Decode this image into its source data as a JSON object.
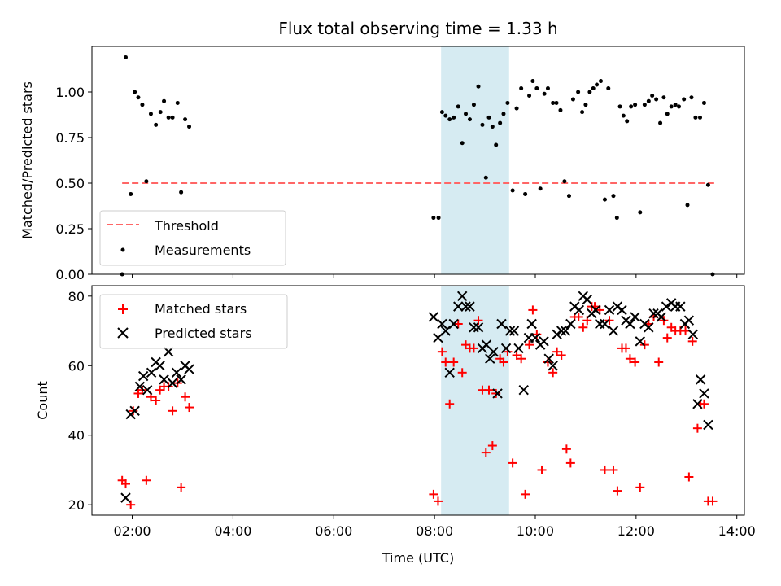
{
  "chart_data": [
    {
      "type": "scatter",
      "title": "Flux total observing time = 1.33 h",
      "ylabel": "Matched/Predicted stars",
      "ylim": [
        0,
        1.25
      ],
      "yticks": [
        0.0,
        0.25,
        0.5,
        0.75,
        1.0
      ],
      "ytick_labels": [
        "0.00",
        "0.25",
        "0.50",
        "0.75",
        "1.00"
      ],
      "xlim_hours": [
        1.2,
        14.15
      ],
      "xticks": [
        2,
        4,
        6,
        8,
        10,
        12,
        14
      ],
      "grid": false,
      "legend_position": "lower-left",
      "shaded_interval": [
        8.13,
        9.48
      ],
      "shade_color": "#add8e6",
      "threshold": {
        "name": "Threshold",
        "y": 0.5,
        "x_range": [
          1.8,
          13.55
        ],
        "color": "#ff6666"
      },
      "series": [
        {
          "name": "Measurements",
          "color": "#000000",
          "points": [
            [
              1.8,
              0.0
            ],
            [
              1.87,
              1.19
            ],
            [
              1.97,
              0.44
            ],
            [
              2.05,
              1.0
            ],
            [
              2.12,
              0.97
            ],
            [
              2.2,
              0.93
            ],
            [
              2.28,
              0.51
            ],
            [
              2.37,
              0.88
            ],
            [
              2.47,
              0.82
            ],
            [
              2.56,
              0.89
            ],
            [
              2.63,
              0.95
            ],
            [
              2.72,
              0.86
            ],
            [
              2.8,
              0.86
            ],
            [
              2.9,
              0.94
            ],
            [
              2.97,
              0.45
            ],
            [
              3.05,
              0.85
            ],
            [
              3.13,
              0.81
            ],
            [
              7.98,
              0.31
            ],
            [
              8.08,
              0.31
            ],
            [
              8.15,
              0.89
            ],
            [
              8.22,
              0.87
            ],
            [
              8.3,
              0.85
            ],
            [
              8.38,
              0.86
            ],
            [
              8.47,
              0.92
            ],
            [
              8.55,
              0.72
            ],
            [
              8.62,
              0.88
            ],
            [
              8.7,
              0.85
            ],
            [
              8.78,
              0.93
            ],
            [
              8.87,
              1.03
            ],
            [
              8.95,
              0.82
            ],
            [
              9.02,
              0.53
            ],
            [
              9.08,
              0.86
            ],
            [
              9.15,
              0.81
            ],
            [
              9.22,
              0.71
            ],
            [
              9.3,
              0.83
            ],
            [
              9.37,
              0.88
            ],
            [
              9.45,
              0.94
            ],
            [
              9.55,
              0.46
            ],
            [
              9.63,
              0.91
            ],
            [
              9.72,
              1.02
            ],
            [
              9.8,
              0.44
            ],
            [
              9.88,
              0.98
            ],
            [
              9.95,
              1.06
            ],
            [
              10.03,
              1.02
            ],
            [
              10.1,
              0.47
            ],
            [
              10.18,
              0.99
            ],
            [
              10.25,
              1.02
            ],
            [
              10.35,
              0.94
            ],
            [
              10.42,
              0.94
            ],
            [
              10.5,
              0.9
            ],
            [
              10.58,
              0.51
            ],
            [
              10.67,
              0.43
            ],
            [
              10.75,
              0.96
            ],
            [
              10.85,
              1.0
            ],
            [
              10.93,
              0.89
            ],
            [
              11.0,
              0.93
            ],
            [
              11.08,
              1.0
            ],
            [
              11.15,
              1.02
            ],
            [
              11.22,
              1.04
            ],
            [
              11.3,
              1.06
            ],
            [
              11.38,
              0.41
            ],
            [
              11.45,
              1.02
            ],
            [
              11.55,
              0.43
            ],
            [
              11.62,
              0.31
            ],
            [
              11.68,
              0.92
            ],
            [
              11.75,
              0.87
            ],
            [
              11.82,
              0.84
            ],
            [
              11.9,
              0.92
            ],
            [
              11.98,
              0.93
            ],
            [
              12.08,
              0.34
            ],
            [
              12.17,
              0.93
            ],
            [
              12.25,
              0.95
            ],
            [
              12.32,
              0.98
            ],
            [
              12.4,
              0.96
            ],
            [
              12.48,
              0.83
            ],
            [
              12.55,
              0.97
            ],
            [
              12.62,
              0.88
            ],
            [
              12.7,
              0.92
            ],
            [
              12.78,
              0.93
            ],
            [
              12.85,
              0.92
            ],
            [
              12.95,
              0.96
            ],
            [
              13.02,
              0.38
            ],
            [
              13.1,
              0.97
            ],
            [
              13.18,
              0.86
            ],
            [
              13.27,
              0.86
            ],
            [
              13.35,
              0.94
            ],
            [
              13.43,
              0.49
            ],
            [
              13.52,
              0.0
            ]
          ]
        }
      ]
    },
    {
      "type": "scatter",
      "xlabel": "Time (UTC)",
      "ylabel": "Count",
      "ylim": [
        17,
        83
      ],
      "yticks": [
        20,
        40,
        60,
        80
      ],
      "ytick_labels": [
        "20",
        "40",
        "60",
        "80"
      ],
      "xlim_hours": [
        1.2,
        14.15
      ],
      "xticks": [
        2,
        4,
        6,
        8,
        10,
        12,
        14
      ],
      "xtick_labels": [
        "02:00",
        "04:00",
        "06:00",
        "08:00",
        "10:00",
        "12:00",
        "14:00"
      ],
      "grid": false,
      "legend_position": "upper-left",
      "shaded_interval": [
        8.13,
        9.48
      ],
      "shade_color": "#add8e6",
      "series": [
        {
          "name": "Matched stars",
          "marker": "plus",
          "color": "#ff0000",
          "points": [
            [
              1.8,
              27
            ],
            [
              1.87,
              26
            ],
            [
              1.97,
              20
            ],
            [
              2.02,
              47
            ],
            [
              2.12,
              52
            ],
            [
              2.2,
              53
            ],
            [
              2.28,
              27
            ],
            [
              2.37,
              51
            ],
            [
              2.47,
              50
            ],
            [
              2.55,
              53
            ],
            [
              2.63,
              54
            ],
            [
              2.72,
              54
            ],
            [
              2.8,
              47
            ],
            [
              2.9,
              55
            ],
            [
              2.97,
              25
            ],
            [
              3.05,
              51
            ],
            [
              3.13,
              48
            ],
            [
              7.98,
              23
            ],
            [
              8.07,
              21
            ],
            [
              8.15,
              64
            ],
            [
              8.22,
              61
            ],
            [
              8.3,
              49
            ],
            [
              8.38,
              61
            ],
            [
              8.47,
              72
            ],
            [
              8.55,
              58
            ],
            [
              8.62,
              66
            ],
            [
              8.7,
              65
            ],
            [
              8.78,
              65
            ],
            [
              8.87,
              73
            ],
            [
              8.95,
              53
            ],
            [
              9.02,
              35
            ],
            [
              9.08,
              53
            ],
            [
              9.15,
              37
            ],
            [
              9.22,
              52
            ],
            [
              9.3,
              62
            ],
            [
              9.37,
              61
            ],
            [
              9.45,
              64
            ],
            [
              9.55,
              32
            ],
            [
              9.63,
              63
            ],
            [
              9.72,
              62
            ],
            [
              9.8,
              23
            ],
            [
              9.88,
              66
            ],
            [
              9.95,
              76
            ],
            [
              10.03,
              69
            ],
            [
              10.13,
              30
            ],
            [
              10.25,
              61
            ],
            [
              10.35,
              58
            ],
            [
              10.43,
              64
            ],
            [
              10.52,
              63
            ],
            [
              10.62,
              36
            ],
            [
              10.7,
              32
            ],
            [
              10.78,
              74
            ],
            [
              10.86,
              74
            ],
            [
              10.95,
              71
            ],
            [
              11.03,
              73
            ],
            [
              11.12,
              77
            ],
            [
              11.18,
              77
            ],
            [
              11.28,
              76
            ],
            [
              11.38,
              30
            ],
            [
              11.47,
              73
            ],
            [
              11.55,
              30
            ],
            [
              11.63,
              24
            ],
            [
              11.72,
              65
            ],
            [
              11.8,
              65
            ],
            [
              11.88,
              62
            ],
            [
              11.98,
              61
            ],
            [
              12.08,
              25
            ],
            [
              12.17,
              66
            ],
            [
              12.25,
              72
            ],
            [
              12.35,
              74
            ],
            [
              12.45,
              61
            ],
            [
              12.55,
              73
            ],
            [
              12.62,
              68
            ],
            [
              12.7,
              71
            ],
            [
              12.78,
              70
            ],
            [
              12.88,
              70
            ],
            [
              12.98,
              70
            ],
            [
              13.05,
              28
            ],
            [
              13.12,
              67
            ],
            [
              13.22,
              42
            ],
            [
              13.28,
              49
            ],
            [
              13.35,
              49
            ],
            [
              13.43,
              21
            ],
            [
              13.52,
              21
            ]
          ]
        },
        {
          "name": "Predicted stars",
          "marker": "x",
          "color": "#000000",
          "points": [
            [
              1.87,
              22
            ],
            [
              1.97,
              46
            ],
            [
              2.05,
              47
            ],
            [
              2.15,
              54
            ],
            [
              2.22,
              57
            ],
            [
              2.3,
              53
            ],
            [
              2.38,
              58
            ],
            [
              2.47,
              61
            ],
            [
              2.55,
              60
            ],
            [
              2.63,
              56
            ],
            [
              2.72,
              64
            ],
            [
              2.8,
              55
            ],
            [
              2.88,
              58
            ],
            [
              2.97,
              56
            ],
            [
              3.05,
              60
            ],
            [
              3.13,
              59
            ],
            [
              7.98,
              74
            ],
            [
              8.07,
              68
            ],
            [
              8.15,
              72
            ],
            [
              8.22,
              70
            ],
            [
              8.3,
              58
            ],
            [
              8.38,
              72
            ],
            [
              8.47,
              77
            ],
            [
              8.55,
              80
            ],
            [
              8.62,
              77
            ],
            [
              8.7,
              77
            ],
            [
              8.78,
              71
            ],
            [
              8.87,
              71
            ],
            [
              8.95,
              65
            ],
            [
              9.03,
              66
            ],
            [
              9.1,
              62
            ],
            [
              9.17,
              64
            ],
            [
              9.25,
              52
            ],
            [
              9.33,
              72
            ],
            [
              9.42,
              65
            ],
            [
              9.5,
              70
            ],
            [
              9.58,
              70
            ],
            [
              9.67,
              65
            ],
            [
              9.77,
              53
            ],
            [
              9.87,
              68
            ],
            [
              9.93,
              72
            ],
            [
              10.0,
              68
            ],
            [
              10.1,
              66
            ],
            [
              10.17,
              67
            ],
            [
              10.27,
              62
            ],
            [
              10.35,
              60
            ],
            [
              10.43,
              69
            ],
            [
              10.52,
              70
            ],
            [
              10.6,
              70
            ],
            [
              10.7,
              72
            ],
            [
              10.78,
              77
            ],
            [
              10.87,
              76
            ],
            [
              10.95,
              80
            ],
            [
              11.03,
              79
            ],
            [
              11.12,
              75
            ],
            [
              11.2,
              76
            ],
            [
              11.28,
              72
            ],
            [
              11.38,
              72
            ],
            [
              11.47,
              76
            ],
            [
              11.55,
              70
            ],
            [
              11.63,
              77
            ],
            [
              11.72,
              76
            ],
            [
              11.8,
              73
            ],
            [
              11.88,
              72
            ],
            [
              11.98,
              74
            ],
            [
              12.08,
              67
            ],
            [
              12.17,
              72
            ],
            [
              12.25,
              71
            ],
            [
              12.35,
              75
            ],
            [
              12.43,
              75
            ],
            [
              12.5,
              74
            ],
            [
              12.6,
              77
            ],
            [
              12.7,
              78
            ],
            [
              12.78,
              77
            ],
            [
              12.88,
              77
            ],
            [
              12.97,
              72
            ],
            [
              13.05,
              73
            ],
            [
              13.13,
              69
            ],
            [
              13.22,
              49
            ],
            [
              13.28,
              56
            ],
            [
              13.35,
              52
            ],
            [
              13.43,
              43
            ]
          ]
        }
      ]
    }
  ]
}
